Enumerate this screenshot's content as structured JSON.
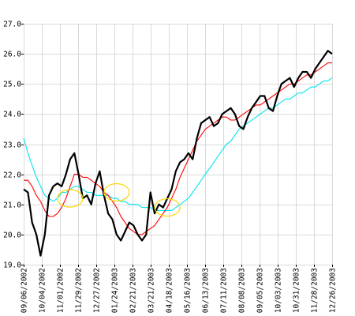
{
  "chart_data": {
    "type": "line",
    "title": "",
    "xlabel": "",
    "ylabel": "",
    "ylim": [
      19,
      27
    ],
    "y_ticks": [
      "19.0",
      "20.0",
      "21.0",
      "22.0",
      "23.0",
      "24.0",
      "25.0",
      "26.0",
      "27.0"
    ],
    "x_ticks": [
      "09/06/2002",
      "10/04/2002",
      "11/01/2002",
      "11/29/2002",
      "12/27/2002",
      "01/24/2003",
      "02/21/2003",
      "03/21/2003",
      "04/18/2003",
      "05/16/2003",
      "06/13/2003",
      "07/11/2003",
      "08/08/2003",
      "09/05/2003",
      "10/03/2003",
      "10/31/2003",
      "11/28/2003",
      "12/26/2003"
    ],
    "grid": true,
    "legend": "none",
    "series": [
      {
        "color": "#000000",
        "values": [
          21.5,
          21.4,
          20.4,
          20.0,
          19.3,
          20.0,
          21.3,
          21.6,
          21.7,
          21.6,
          22.0,
          22.5,
          22.7,
          22.0,
          21.2,
          21.3,
          21.0,
          21.7,
          22.1,
          21.3,
          20.7,
          20.5,
          20.0,
          19.8,
          20.1,
          20.4,
          20.3,
          20.0,
          19.8,
          20.0,
          21.4,
          20.7,
          21.0,
          20.9,
          21.2,
          21.5,
          22.1,
          22.4,
          22.5,
          22.7,
          22.5,
          23.2,
          23.7,
          23.8,
          23.9,
          23.6,
          23.7,
          24.0,
          24.1,
          24.2,
          24.0,
          23.6,
          23.5,
          23.9,
          24.2,
          24.4,
          24.6,
          24.6,
          24.2,
          24.1,
          24.6,
          25.0,
          25.1,
          25.2,
          24.9,
          25.2,
          25.4,
          25.4,
          25.2,
          25.5,
          25.7,
          25.9,
          26.1,
          26.0
        ]
      },
      {
        "color": "#ff0000",
        "values": [
          21.8,
          21.8,
          21.6,
          21.3,
          21.1,
          20.8,
          20.6,
          20.6,
          20.7,
          20.9,
          21.2,
          21.6,
          22.0,
          22.0,
          21.9,
          21.9,
          21.8,
          21.7,
          21.6,
          21.4,
          21.3,
          21.1,
          20.9,
          20.6,
          20.4,
          20.2,
          20.1,
          20.0,
          20.0,
          20.1,
          20.2,
          20.3,
          20.5,
          20.7,
          20.9,
          21.2,
          21.5,
          21.9,
          22.2,
          22.5,
          22.8,
          23.1,
          23.3,
          23.5,
          23.6,
          23.7,
          23.8,
          23.9,
          23.9,
          23.8,
          23.8,
          23.9,
          24.0,
          24.1,
          24.2,
          24.3,
          24.3,
          24.4,
          24.5,
          24.6,
          24.7,
          24.8,
          24.9,
          25.0,
          25.0,
          25.1,
          25.2,
          25.3,
          25.3,
          25.4,
          25.5,
          25.6,
          25.7,
          25.7
        ]
      },
      {
        "color": "#00e5ee",
        "values": [
          23.2,
          22.7,
          22.3,
          21.9,
          21.6,
          21.3,
          21.2,
          21.1,
          21.2,
          21.4,
          21.4,
          21.5,
          21.6,
          21.6,
          21.5,
          21.4,
          21.4,
          21.3,
          21.3,
          21.3,
          21.3,
          21.2,
          21.2,
          21.1,
          21.1,
          21.0,
          21.0,
          21.0,
          20.9,
          20.9,
          20.9,
          20.8,
          20.8,
          20.8,
          20.8,
          20.8,
          20.9,
          21.0,
          21.1,
          21.2,
          21.4,
          21.6,
          21.8,
          22.0,
          22.2,
          22.4,
          22.6,
          22.8,
          23.0,
          23.1,
          23.3,
          23.5,
          23.6,
          23.7,
          23.8,
          23.9,
          24.0,
          24.1,
          24.2,
          24.2,
          24.3,
          24.4,
          24.5,
          24.5,
          24.6,
          24.7,
          24.7,
          24.8,
          24.9,
          24.9,
          25.0,
          25.1,
          25.1,
          25.2
        ]
      }
    ],
    "annotations": [
      {
        "type": "ellipse",
        "color": "#ffd700",
        "x_index": 11,
        "y": 21.2
      },
      {
        "type": "ellipse",
        "color": "#ffd700",
        "x_index": 22,
        "y": 21.4
      },
      {
        "type": "ellipse",
        "color": "#ffd700",
        "x_index": 34,
        "y": 20.9
      }
    ]
  }
}
